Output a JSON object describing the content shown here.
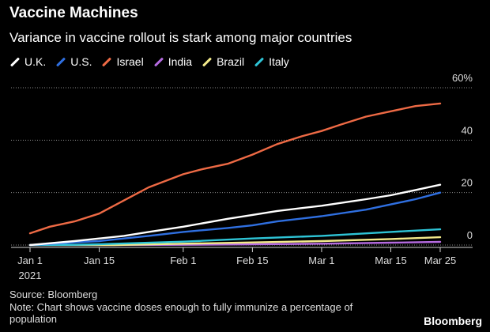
{
  "chart_data": {
    "type": "line",
    "title": "Vaccine Machines",
    "subtitle": "Variance in vaccine rollout is stark among major countries",
    "x_ticks": [
      {
        "date": "2021-01-01",
        "label": "Jan 1",
        "sublabel": "2021"
      },
      {
        "date": "2021-01-15",
        "label": "Jan 15"
      },
      {
        "date": "2021-02-01",
        "label": "Feb 1"
      },
      {
        "date": "2021-02-15",
        "label": "Feb 15"
      },
      {
        "date": "2021-03-01",
        "label": "Mar 1"
      },
      {
        "date": "2021-03-15",
        "label": "Mar 15"
      },
      {
        "date": "2021-03-25",
        "label": "Mar 25"
      }
    ],
    "xlim": [
      "2021-01-01",
      "2021-03-25"
    ],
    "y_ticks": [
      {
        "value": 0,
        "label": "0"
      },
      {
        "value": 20,
        "label": "20"
      },
      {
        "value": 40,
        "label": "40"
      },
      {
        "value": 60,
        "label": "60%"
      }
    ],
    "ylim": [
      0,
      60
    ],
    "grid": "horizontal dotted",
    "legend_position": "top-left",
    "series": [
      {
        "name": "U.K.",
        "color": "#ffffff",
        "x": [
          "2021-01-01",
          "2021-01-10",
          "2021-01-15",
          "2021-01-20",
          "2021-01-25",
          "2021-02-01",
          "2021-02-10",
          "2021-02-15",
          "2021-02-20",
          "2021-03-01",
          "2021-03-10",
          "2021-03-15",
          "2021-03-20",
          "2021-03-25"
        ],
        "y": [
          0,
          1.5,
          2.5,
          3.5,
          5,
          7,
          10,
          11.5,
          13,
          15,
          17.5,
          19,
          21,
          23
        ]
      },
      {
        "name": "U.S.",
        "color": "#2f6fe0",
        "x": [
          "2021-01-01",
          "2021-01-10",
          "2021-01-15",
          "2021-01-20",
          "2021-01-25",
          "2021-02-01",
          "2021-02-10",
          "2021-02-15",
          "2021-02-20",
          "2021-03-01",
          "2021-03-10",
          "2021-03-15",
          "2021-03-20",
          "2021-03-25"
        ],
        "y": [
          0,
          1,
          1.5,
          2.5,
          3.5,
          5,
          6.5,
          7.5,
          9,
          11,
          13.5,
          15.5,
          17.5,
          20
        ]
      },
      {
        "name": "Israel",
        "color": "#ee6a45",
        "x": [
          "2021-01-01",
          "2021-01-05",
          "2021-01-10",
          "2021-01-15",
          "2021-01-20",
          "2021-01-25",
          "2021-02-01",
          "2021-02-05",
          "2021-02-10",
          "2021-02-15",
          "2021-02-20",
          "2021-02-25",
          "2021-03-01",
          "2021-03-05",
          "2021-03-10",
          "2021-03-15",
          "2021-03-20",
          "2021-03-25"
        ],
        "y": [
          4.5,
          7,
          9,
          12,
          17,
          22,
          27,
          29,
          31,
          34.5,
          38.5,
          41.5,
          43.5,
          46,
          49,
          51,
          53,
          54
        ]
      },
      {
        "name": "India",
        "color": "#b56be0",
        "x": [
          "2021-01-01",
          "2021-01-16",
          "2021-02-01",
          "2021-02-15",
          "2021-03-01",
          "2021-03-15",
          "2021-03-25"
        ],
        "y": [
          0,
          0,
          0.1,
          0.3,
          0.5,
          0.9,
          1.2
        ]
      },
      {
        "name": "Brazil",
        "color": "#f3ea8a",
        "x": [
          "2021-01-01",
          "2021-01-18",
          "2021-02-01",
          "2021-02-15",
          "2021-03-01",
          "2021-03-15",
          "2021-03-25"
        ],
        "y": [
          0,
          0,
          0.5,
          1,
          1.5,
          2.3,
          3
        ]
      },
      {
        "name": "Italy",
        "color": "#2ec4d6",
        "x": [
          "2021-01-01",
          "2021-01-10",
          "2021-01-15",
          "2021-02-01",
          "2021-02-15",
          "2021-03-01",
          "2021-03-15",
          "2021-03-25"
        ],
        "y": [
          0,
          0.1,
          0.3,
          1.3,
          2.5,
          3.5,
          5,
          6
        ]
      }
    ]
  },
  "footer": {
    "source": "Source: Bloomberg",
    "note": "Note: Chart shows vaccine doses enough to fully immunize a percentage of population",
    "brand": "Bloomberg"
  }
}
